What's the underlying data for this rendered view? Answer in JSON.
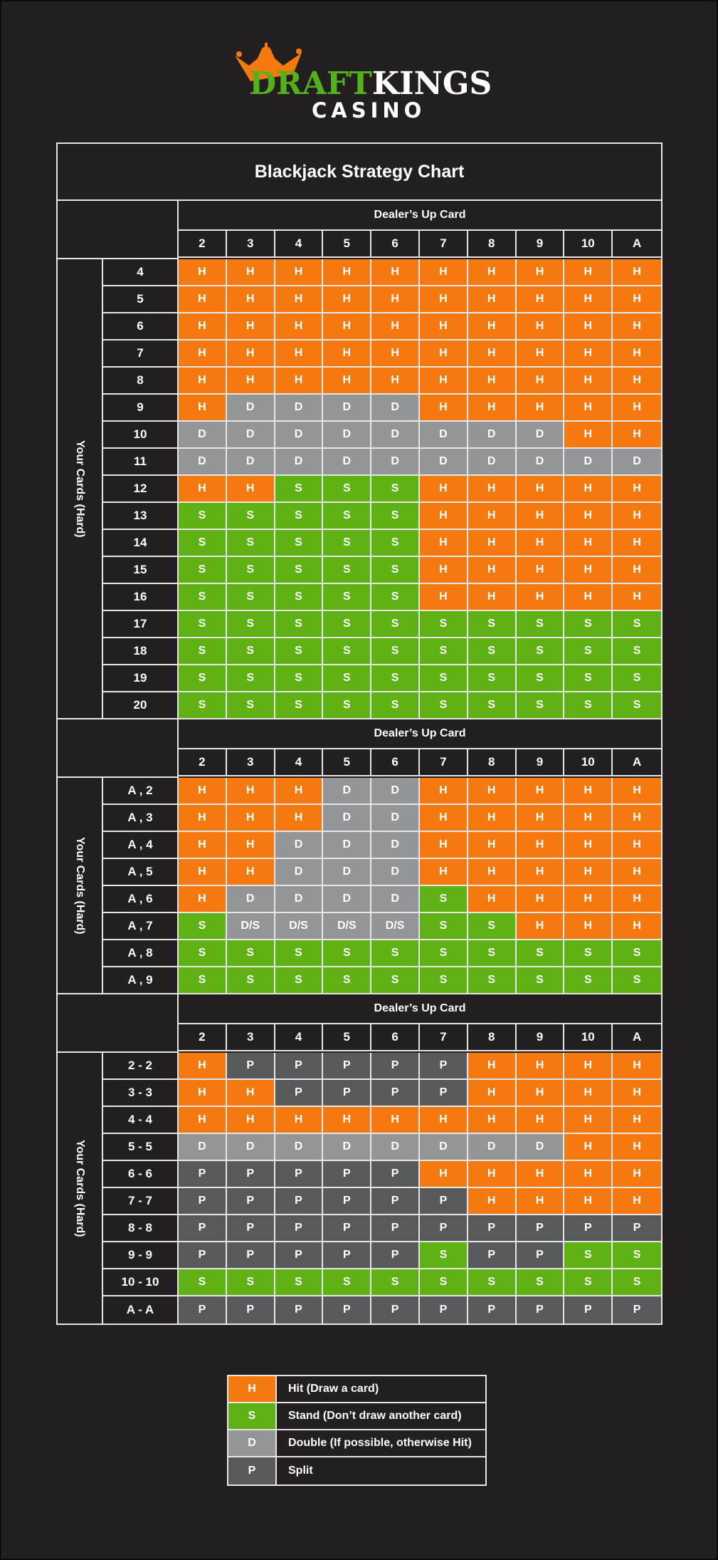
{
  "brand": {
    "name_part1": "DRAFT",
    "name_part2": "KINGS",
    "subtitle": "CASINO",
    "colors": {
      "green": "#53b21c",
      "orange": "#f47a10",
      "white": "#ffffff"
    }
  },
  "title": "Blackjack Strategy Chart",
  "colors": {
    "background": "#231f20",
    "H": "#f47a10",
    "S": "#5fb214",
    "D": "#939598",
    "P": "#58595b",
    "grid": "#e6e6e6"
  },
  "sections": [
    {
      "id": "hard",
      "dealer_label": "Dealer’s Up Card",
      "side_label": "Your Cards (Hard)",
      "columns": [
        "2",
        "3",
        "4",
        "5",
        "6",
        "7",
        "8",
        "9",
        "10",
        "A"
      ],
      "rows": [
        {
          "hand": "4",
          "actions": [
            "H",
            "H",
            "H",
            "H",
            "H",
            "H",
            "H",
            "H",
            "H",
            "H"
          ]
        },
        {
          "hand": "5",
          "actions": [
            "H",
            "H",
            "H",
            "H",
            "H",
            "H",
            "H",
            "H",
            "H",
            "H"
          ]
        },
        {
          "hand": "6",
          "actions": [
            "H",
            "H",
            "H",
            "H",
            "H",
            "H",
            "H",
            "H",
            "H",
            "H"
          ]
        },
        {
          "hand": "7",
          "actions": [
            "H",
            "H",
            "H",
            "H",
            "H",
            "H",
            "H",
            "H",
            "H",
            "H"
          ]
        },
        {
          "hand": "8",
          "actions": [
            "H",
            "H",
            "H",
            "H",
            "H",
            "H",
            "H",
            "H",
            "H",
            "H"
          ]
        },
        {
          "hand": "9",
          "actions": [
            "H",
            "D",
            "D",
            "D",
            "D",
            "H",
            "H",
            "H",
            "H",
            "H"
          ]
        },
        {
          "hand": "10",
          "actions": [
            "D",
            "D",
            "D",
            "D",
            "D",
            "D",
            "D",
            "D",
            "H",
            "H"
          ]
        },
        {
          "hand": "11",
          "actions": [
            "D",
            "D",
            "D",
            "D",
            "D",
            "D",
            "D",
            "D",
            "D",
            "D"
          ]
        },
        {
          "hand": "12",
          "actions": [
            "H",
            "H",
            "S",
            "S",
            "S",
            "H",
            "H",
            "H",
            "H",
            "H"
          ]
        },
        {
          "hand": "13",
          "actions": [
            "S",
            "S",
            "S",
            "S",
            "S",
            "H",
            "H",
            "H",
            "H",
            "H"
          ]
        },
        {
          "hand": "14",
          "actions": [
            "S",
            "S",
            "S",
            "S",
            "S",
            "H",
            "H",
            "H",
            "H",
            "H"
          ]
        },
        {
          "hand": "15",
          "actions": [
            "S",
            "S",
            "S",
            "S",
            "S",
            "H",
            "H",
            "H",
            "H",
            "H"
          ]
        },
        {
          "hand": "16",
          "actions": [
            "S",
            "S",
            "S",
            "S",
            "S",
            "H",
            "H",
            "H",
            "H",
            "H"
          ]
        },
        {
          "hand": "17",
          "actions": [
            "S",
            "S",
            "S",
            "S",
            "S",
            "S",
            "S",
            "S",
            "S",
            "S"
          ]
        },
        {
          "hand": "18",
          "actions": [
            "S",
            "S",
            "S",
            "S",
            "S",
            "S",
            "S",
            "S",
            "S",
            "S"
          ]
        },
        {
          "hand": "19",
          "actions": [
            "S",
            "S",
            "S",
            "S",
            "S",
            "S",
            "S",
            "S",
            "S",
            "S"
          ]
        },
        {
          "hand": "20",
          "actions": [
            "S",
            "S",
            "S",
            "S",
            "S",
            "S",
            "S",
            "S",
            "S",
            "S"
          ]
        }
      ]
    },
    {
      "id": "soft",
      "dealer_label": "Dealer’s Up Card",
      "side_label": "Your Cards (Hard)",
      "columns": [
        "2",
        "3",
        "4",
        "5",
        "6",
        "7",
        "8",
        "9",
        "10",
        "A"
      ],
      "rows": [
        {
          "hand": "A , 2",
          "actions": [
            "H",
            "H",
            "H",
            "D",
            "D",
            "H",
            "H",
            "H",
            "H",
            "H"
          ]
        },
        {
          "hand": "A , 3",
          "actions": [
            "H",
            "H",
            "H",
            "D",
            "D",
            "H",
            "H",
            "H",
            "H",
            "H"
          ]
        },
        {
          "hand": "A , 4",
          "actions": [
            "H",
            "H",
            "D",
            "D",
            "D",
            "H",
            "H",
            "H",
            "H",
            "H"
          ]
        },
        {
          "hand": "A , 5",
          "actions": [
            "H",
            "H",
            "D",
            "D",
            "D",
            "H",
            "H",
            "H",
            "H",
            "H"
          ]
        },
        {
          "hand": "A , 6",
          "actions": [
            "H",
            "D",
            "D",
            "D",
            "D",
            "S",
            "H",
            "H",
            "H",
            "H"
          ]
        },
        {
          "hand": "A , 7",
          "actions": [
            "S",
            "D/S",
            "D/S",
            "D/S",
            "D/S",
            "S",
            "S",
            "H",
            "H",
            "H"
          ]
        },
        {
          "hand": "A , 8",
          "actions": [
            "S",
            "S",
            "S",
            "S",
            "S",
            "S",
            "S",
            "S",
            "S",
            "S"
          ]
        },
        {
          "hand": "A , 9",
          "actions": [
            "S",
            "S",
            "S",
            "S",
            "S",
            "S",
            "S",
            "S",
            "S",
            "S"
          ]
        }
      ]
    },
    {
      "id": "pairs",
      "dealer_label": "Dealer’s Up Card",
      "side_label": "Your Cards (Hard)",
      "columns": [
        "2",
        "3",
        "4",
        "5",
        "6",
        "7",
        "8",
        "9",
        "10",
        "A"
      ],
      "rows": [
        {
          "hand": "2 - 2",
          "actions": [
            "H",
            "P",
            "P",
            "P",
            "P",
            "P",
            "H",
            "H",
            "H",
            "H"
          ]
        },
        {
          "hand": "3 - 3",
          "actions": [
            "H",
            "H",
            "P",
            "P",
            "P",
            "P",
            "H",
            "H",
            "H",
            "H"
          ]
        },
        {
          "hand": "4 - 4",
          "actions": [
            "H",
            "H",
            "H",
            "H",
            "H",
            "H",
            "H",
            "H",
            "H",
            "H"
          ]
        },
        {
          "hand": "5 - 5",
          "actions": [
            "D",
            "D",
            "D",
            "D",
            "D",
            "D",
            "D",
            "D",
            "H",
            "H"
          ]
        },
        {
          "hand": "6 - 6",
          "actions": [
            "P",
            "P",
            "P",
            "P",
            "P",
            "H",
            "H",
            "H",
            "H",
            "H"
          ]
        },
        {
          "hand": "7 - 7",
          "actions": [
            "P",
            "P",
            "P",
            "P",
            "P",
            "P",
            "H",
            "H",
            "H",
            "H"
          ]
        },
        {
          "hand": "8 - 8",
          "actions": [
            "P",
            "P",
            "P",
            "P",
            "P",
            "P",
            "P",
            "P",
            "P",
            "P"
          ]
        },
        {
          "hand": "9 - 9",
          "actions": [
            "P",
            "P",
            "P",
            "P",
            "P",
            "S",
            "P",
            "P",
            "S",
            "S"
          ]
        },
        {
          "hand": "10 - 10",
          "actions": [
            "S",
            "S",
            "S",
            "S",
            "S",
            "S",
            "S",
            "S",
            "S",
            "S"
          ]
        },
        {
          "hand": "A - A",
          "actions": [
            "P",
            "P",
            "P",
            "P",
            "P",
            "P",
            "P",
            "P",
            "P",
            "P"
          ]
        }
      ]
    }
  ],
  "legend": [
    {
      "code": "H",
      "label": "Hit (Draw a card)"
    },
    {
      "code": "S",
      "label": "Stand (Don’t draw another card)"
    },
    {
      "code": "D",
      "label": "Double (If possible, otherwise Hit)"
    },
    {
      "code": "P",
      "label": "Split"
    }
  ]
}
